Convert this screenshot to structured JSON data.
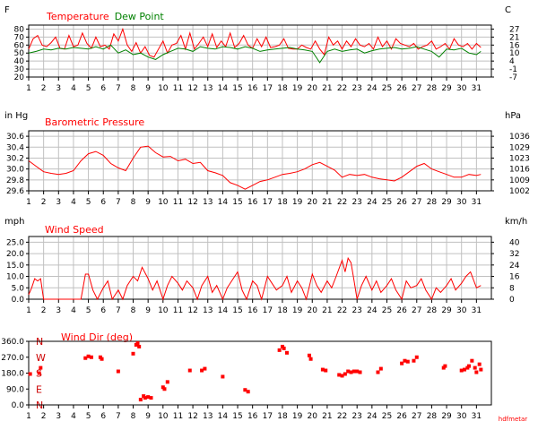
{
  "colors": {
    "temperature": "#ff0000",
    "dew_point": "#008000",
    "pressure": "#ff0000",
    "wind_speed": "#ff0000",
    "wind_dir": "#ff0000",
    "dir_letters": "#cc0000",
    "grid": "#c0c0c0",
    "frame": "#000000"
  },
  "credit": "hdfmetar",
  "chart_data": [
    {
      "id": "temperature",
      "type": "line",
      "title_parts": [
        "Temperature",
        "Dew Point"
      ],
      "unit_left": "F",
      "unit_right": "C",
      "yticks_left": [
        "80",
        "70",
        "60",
        "50",
        "40",
        "30",
        "20"
      ],
      "yticks_right": [
        "27",
        "21",
        "16",
        "10",
        "4",
        "-1",
        "-7"
      ],
      "ylim": [
        20,
        85
      ],
      "xlim": [
        1,
        32
      ],
      "xticks": [
        "1",
        "2",
        "3",
        "4",
        "5",
        "6",
        "7",
        "8",
        "9",
        "10",
        "11",
        "12",
        "13",
        "14",
        "15",
        "16",
        "17",
        "18",
        "19",
        "20",
        "21",
        "22",
        "23",
        "24",
        "25",
        "26",
        "27",
        "28",
        "29",
        "30",
        "31"
      ],
      "grid": true,
      "series": [
        {
          "name": "Temperature",
          "x": [
            1,
            1.3,
            1.6,
            1.9,
            2.2,
            2.5,
            2.8,
            3.1,
            3.4,
            3.7,
            4.0,
            4.3,
            4.6,
            4.9,
            5.2,
            5.5,
            5.8,
            6.1,
            6.4,
            6.7,
            7.0,
            7.3,
            7.6,
            7.9,
            8.2,
            8.5,
            8.8,
            9.1,
            9.4,
            9.7,
            10.0,
            10.3,
            10.6,
            10.9,
            11.2,
            11.5,
            11.8,
            12.1,
            12.4,
            12.7,
            13.0,
            13.3,
            13.6,
            13.9,
            14.2,
            14.5,
            14.8,
            15.1,
            15.4,
            15.7,
            16.0,
            16.3,
            16.6,
            16.9,
            17.2,
            17.5,
            17.8,
            18.1,
            18.4,
            18.7,
            19.0,
            19.3,
            19.6,
            19.9,
            20.2,
            20.5,
            20.8,
            21.1,
            21.4,
            21.7,
            22.0,
            22.3,
            22.6,
            22.9,
            23.2,
            23.5,
            23.8,
            24.1,
            24.4,
            24.7,
            25.0,
            25.3,
            25.6,
            25.9,
            26.2,
            26.5,
            26.8,
            27.1,
            27.4,
            27.7,
            28.0,
            28.3,
            28.6,
            28.9,
            29.2,
            29.5,
            29.8,
            30.1,
            30.4,
            30.7,
            31.0,
            31.3
          ],
          "values": [
            55,
            68,
            72,
            60,
            58,
            63,
            70,
            56,
            55,
            72,
            58,
            60,
            75,
            62,
            56,
            70,
            58,
            60,
            55,
            74,
            65,
            80,
            60,
            52,
            63,
            50,
            58,
            47,
            45,
            55,
            65,
            50,
            60,
            62,
            72,
            55,
            75,
            55,
            62,
            70,
            58,
            74,
            57,
            65,
            58,
            75,
            57,
            62,
            72,
            60,
            56,
            68,
            58,
            70,
            57,
            58,
            60,
            68,
            56,
            55,
            55,
            60,
            57,
            55,
            65,
            55,
            48,
            70,
            60,
            65,
            55,
            65,
            58,
            68,
            60,
            58,
            62,
            55,
            70,
            58,
            65,
            55,
            68,
            62,
            60,
            58,
            62,
            55,
            58,
            60,
            65,
            55,
            58,
            62,
            55,
            68,
            60,
            58,
            62,
            55,
            62,
            57
          ]
        },
        {
          "name": "Dew Point",
          "x": [
            1,
            1.5,
            2,
            2.5,
            3,
            3.5,
            4,
            4.5,
            5,
            5.5,
            6,
            6.5,
            7,
            7.5,
            8,
            8.5,
            9,
            9.5,
            10,
            10.5,
            11,
            11.5,
            12,
            12.5,
            13,
            13.5,
            14,
            14.5,
            15,
            15.5,
            16,
            16.5,
            17,
            17.5,
            18,
            18.5,
            19,
            19.5,
            20,
            20.5,
            21,
            21.5,
            22,
            22.5,
            23,
            23.5,
            24,
            24.5,
            25,
            25.5,
            26,
            26.5,
            27,
            27.5,
            28,
            28.5,
            29,
            29.5,
            30,
            30.5,
            31,
            31.3
          ],
          "values": [
            50,
            52,
            55,
            54,
            56,
            55,
            57,
            56,
            55,
            58,
            55,
            60,
            50,
            54,
            48,
            50,
            45,
            42,
            48,
            52,
            56,
            55,
            52,
            58,
            56,
            55,
            58,
            57,
            55,
            58,
            56,
            52,
            54,
            55,
            56,
            57,
            55,
            54,
            52,
            38,
            52,
            55,
            52,
            54,
            55,
            50,
            53,
            55,
            56,
            57,
            55,
            56,
            58,
            55,
            52,
            45,
            55,
            54,
            56,
            50,
            48,
            52
          ]
        }
      ]
    },
    {
      "id": "pressure",
      "type": "line",
      "title": "Barometric Pressure",
      "unit_left": "in Hg",
      "unit_right": "hPa",
      "yticks_left": [
        "30.6",
        "30.4",
        "30.2",
        "30.0",
        "29.8",
        "29.6"
      ],
      "yticks_right": [
        "1036",
        "1029",
        "1023",
        "1016",
        "1009",
        "1002"
      ],
      "ylim": [
        29.6,
        30.7
      ],
      "xlim": [
        1,
        32
      ],
      "xticks": [
        "1",
        "2",
        "3",
        "4",
        "5",
        "6",
        "7",
        "8",
        "9",
        "10",
        "11",
        "12",
        "13",
        "14",
        "15",
        "16",
        "17",
        "18",
        "19",
        "20",
        "21",
        "22",
        "23",
        "24",
        "25",
        "26",
        "27",
        "28",
        "29",
        "30",
        "31"
      ],
      "grid": true,
      "series": [
        {
          "name": "Barometric Pressure",
          "x": [
            1,
            1.5,
            2,
            2.5,
            3,
            3.5,
            4,
            4.5,
            5,
            5.5,
            6,
            6.5,
            7,
            7.5,
            8,
            8.5,
            9,
            9.5,
            10,
            10.5,
            11,
            11.5,
            12,
            12.5,
            13,
            13.5,
            14,
            14.5,
            15,
            15.5,
            16,
            16.5,
            17,
            17.5,
            18,
            18.5,
            19,
            19.5,
            20,
            20.5,
            21,
            21.5,
            22,
            22.5,
            23,
            23.5,
            24,
            24.5,
            25,
            25.5,
            26,
            26.5,
            27,
            27.5,
            28,
            28.5,
            29,
            29.5,
            30,
            30.5,
            31,
            31.3
          ],
          "values": [
            30.15,
            30.05,
            29.95,
            29.92,
            29.9,
            29.92,
            29.97,
            30.15,
            30.28,
            30.32,
            30.25,
            30.1,
            30.02,
            29.97,
            30.2,
            30.4,
            30.42,
            30.3,
            30.22,
            30.23,
            30.15,
            30.18,
            30.1,
            30.12,
            29.97,
            29.93,
            29.88,
            29.75,
            29.7,
            29.63,
            29.7,
            29.77,
            29.8,
            29.85,
            29.9,
            29.92,
            29.95,
            30.0,
            30.08,
            30.12,
            30.05,
            29.98,
            29.85,
            29.9,
            29.88,
            29.9,
            29.85,
            29.82,
            29.8,
            29.78,
            29.85,
            29.95,
            30.05,
            30.1,
            30.0,
            29.95,
            29.9,
            29.85,
            29.85,
            29.9,
            29.88,
            29.9
          ]
        }
      ]
    },
    {
      "id": "wind_speed",
      "type": "line",
      "title": "Wind Speed",
      "unit_left": "mph",
      "unit_right": "km/h",
      "yticks_left": [
        "25.0",
        "20.0",
        "15.0",
        "10.0",
        "5.0",
        "0.0"
      ],
      "yticks_right": [
        "40",
        "32",
        "24",
        "16",
        "8",
        "0"
      ],
      "ylim": [
        0,
        27.5
      ],
      "xlim": [
        1,
        32
      ],
      "xticks": [
        "1",
        "2",
        "3",
        "4",
        "5",
        "6",
        "7",
        "8",
        "9",
        "10",
        "11",
        "12",
        "13",
        "14",
        "15",
        "16",
        "17",
        "18",
        "19",
        "20",
        "21",
        "22",
        "23",
        "24",
        "25",
        "26",
        "27",
        "28",
        "29",
        "30",
        "31"
      ],
      "grid": true,
      "series": [
        {
          "name": "Wind Speed",
          "x": [
            1,
            1.2,
            1.4,
            1.6,
            1.8,
            2.0,
            2.2,
            2.4,
            2.6,
            2.8,
            3.0,
            3.5,
            4.0,
            4.5,
            4.8,
            5.0,
            5.3,
            5.6,
            6.0,
            6.3,
            6.6,
            7.0,
            7.3,
            7.6,
            8.0,
            8.3,
            8.6,
            9.0,
            9.3,
            9.6,
            10.0,
            10.3,
            10.6,
            11.0,
            11.3,
            11.6,
            12.0,
            12.3,
            12.6,
            13.0,
            13.3,
            13.6,
            14.0,
            14.3,
            14.6,
            15.0,
            15.3,
            15.6,
            16.0,
            16.3,
            16.6,
            17.0,
            17.3,
            17.6,
            18.0,
            18.3,
            18.6,
            19.0,
            19.3,
            19.6,
            20.0,
            20.3,
            20.6,
            21.0,
            21.3,
            21.6,
            22.0,
            22.2,
            22.4,
            22.6,
            22.8,
            23.0,
            23.3,
            23.6,
            24.0,
            24.3,
            24.6,
            25.0,
            25.3,
            25.6,
            26.0,
            26.3,
            26.6,
            27.0,
            27.3,
            27.6,
            28.0,
            28.3,
            28.6,
            29.0,
            29.3,
            29.6,
            30.0,
            30.3,
            30.6,
            31.0,
            31.3
          ],
          "values": [
            2,
            5,
            9,
            8,
            9,
            0,
            0,
            0,
            0,
            0,
            0,
            0,
            0,
            0,
            11,
            11,
            4,
            0,
            5,
            8,
            0,
            4,
            0,
            6,
            10,
            8,
            14,
            9,
            4,
            8,
            0,
            6,
            10,
            7,
            4,
            8,
            5,
            0,
            6,
            10,
            3,
            6,
            0,
            5,
            8,
            12,
            4,
            0,
            8,
            6,
            0,
            10,
            7,
            4,
            6,
            10,
            3,
            8,
            5,
            0,
            11,
            6,
            3,
            8,
            5,
            10,
            17,
            12,
            18,
            16,
            8,
            0,
            6,
            10,
            4,
            8,
            3,
            6,
            9,
            4,
            0,
            8,
            5,
            6,
            9,
            4,
            0,
            5,
            3,
            6,
            9,
            4,
            7,
            10,
            12,
            5,
            6
          ]
        }
      ]
    },
    {
      "id": "wind_dir",
      "type": "scatter",
      "title": "Wind Dir (deg)",
      "yticks_left": [
        "360.0",
        "270.0",
        "180.0",
        "90.0",
        "0.0"
      ],
      "dir_letters": [
        "N",
        "W",
        "S",
        "E",
        "N"
      ],
      "ylim": [
        0,
        360
      ],
      "xlim": [
        1,
        32
      ],
      "xticks": [
        "1",
        "2",
        "3",
        "4",
        "5",
        "6",
        "7",
        "8",
        "9",
        "10",
        "11",
        "12",
        "13",
        "14",
        "15",
        "16",
        "17",
        "18",
        "19",
        "20",
        "21",
        "22",
        "23",
        "24",
        "25",
        "26",
        "27",
        "28",
        "29",
        "30",
        "31"
      ],
      "grid": false,
      "series": [
        {
          "name": "Wind Dir",
          "x": [
            1.1,
            1.7,
            1.8,
            4.8,
            5.0,
            5.2,
            5.8,
            5.9,
            7.0,
            8.0,
            8.2,
            8.4,
            8.3,
            8.5,
            8.7,
            8.8,
            9.0,
            9.2,
            10.0,
            10.1,
            10.3,
            11.8,
            12.6,
            12.8,
            14.0,
            15.5,
            15.7,
            17.8,
            18.0,
            18.1,
            18.3,
            19.8,
            19.9,
            20.7,
            20.9,
            21.8,
            22.0,
            22.2,
            22.4,
            22.6,
            22.8,
            23.0,
            23.2,
            24.4,
            24.6,
            26.0,
            26.2,
            26.4,
            26.8,
            27.0,
            28.8,
            28.9,
            30.0,
            30.2,
            30.4,
            30.5,
            30.7,
            30.9,
            31.0,
            31.2,
            31.3
          ],
          "values": [
            175,
            180,
            210,
            265,
            275,
            270,
            270,
            260,
            190,
            290,
            340,
            330,
            350,
            30,
            50,
            40,
            45,
            40,
            100,
            90,
            130,
            195,
            195,
            205,
            160,
            85,
            75,
            310,
            330,
            320,
            295,
            280,
            260,
            200,
            195,
            170,
            165,
            175,
            190,
            185,
            190,
            190,
            185,
            185,
            205,
            235,
            250,
            245,
            250,
            270,
            210,
            220,
            195,
            200,
            210,
            220,
            250,
            210,
            185,
            230,
            200
          ]
        }
      ]
    }
  ]
}
